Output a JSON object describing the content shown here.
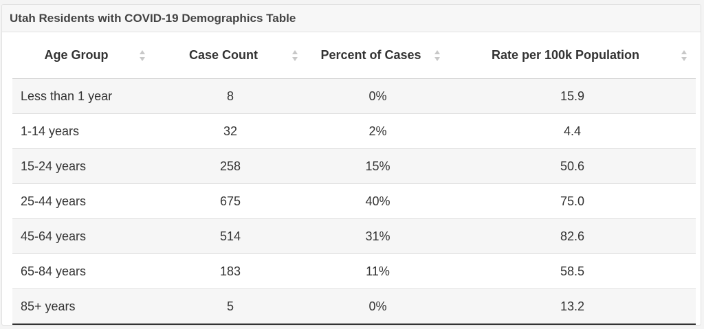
{
  "panel": {
    "title": "Utah Residents with COVID-19 Demographics Table"
  },
  "table": {
    "headers": [
      "Age Group",
      "Case Count",
      "Percent of Cases",
      "Rate per 100k Population"
    ],
    "rows": [
      [
        "Less than 1 year",
        "8",
        "0%",
        "15.9"
      ],
      [
        "1-14 years",
        "32",
        "2%",
        "4.4"
      ],
      [
        "15-24 years",
        "258",
        "15%",
        "50.6"
      ],
      [
        "25-44 years",
        "675",
        "40%",
        "75.0"
      ],
      [
        "45-64 years",
        "514",
        "31%",
        "82.6"
      ],
      [
        "65-84 years",
        "183",
        "11%",
        "58.5"
      ],
      [
        "85+ years",
        "5",
        "0%",
        "13.2"
      ]
    ]
  },
  "icons": {
    "sort": "sort-both-icon"
  },
  "colors": {
    "header_bg": "#f7f7f7",
    "stripe": "#f6f6f6",
    "text": "#333333",
    "sort_icon": "#c8c8c8"
  }
}
